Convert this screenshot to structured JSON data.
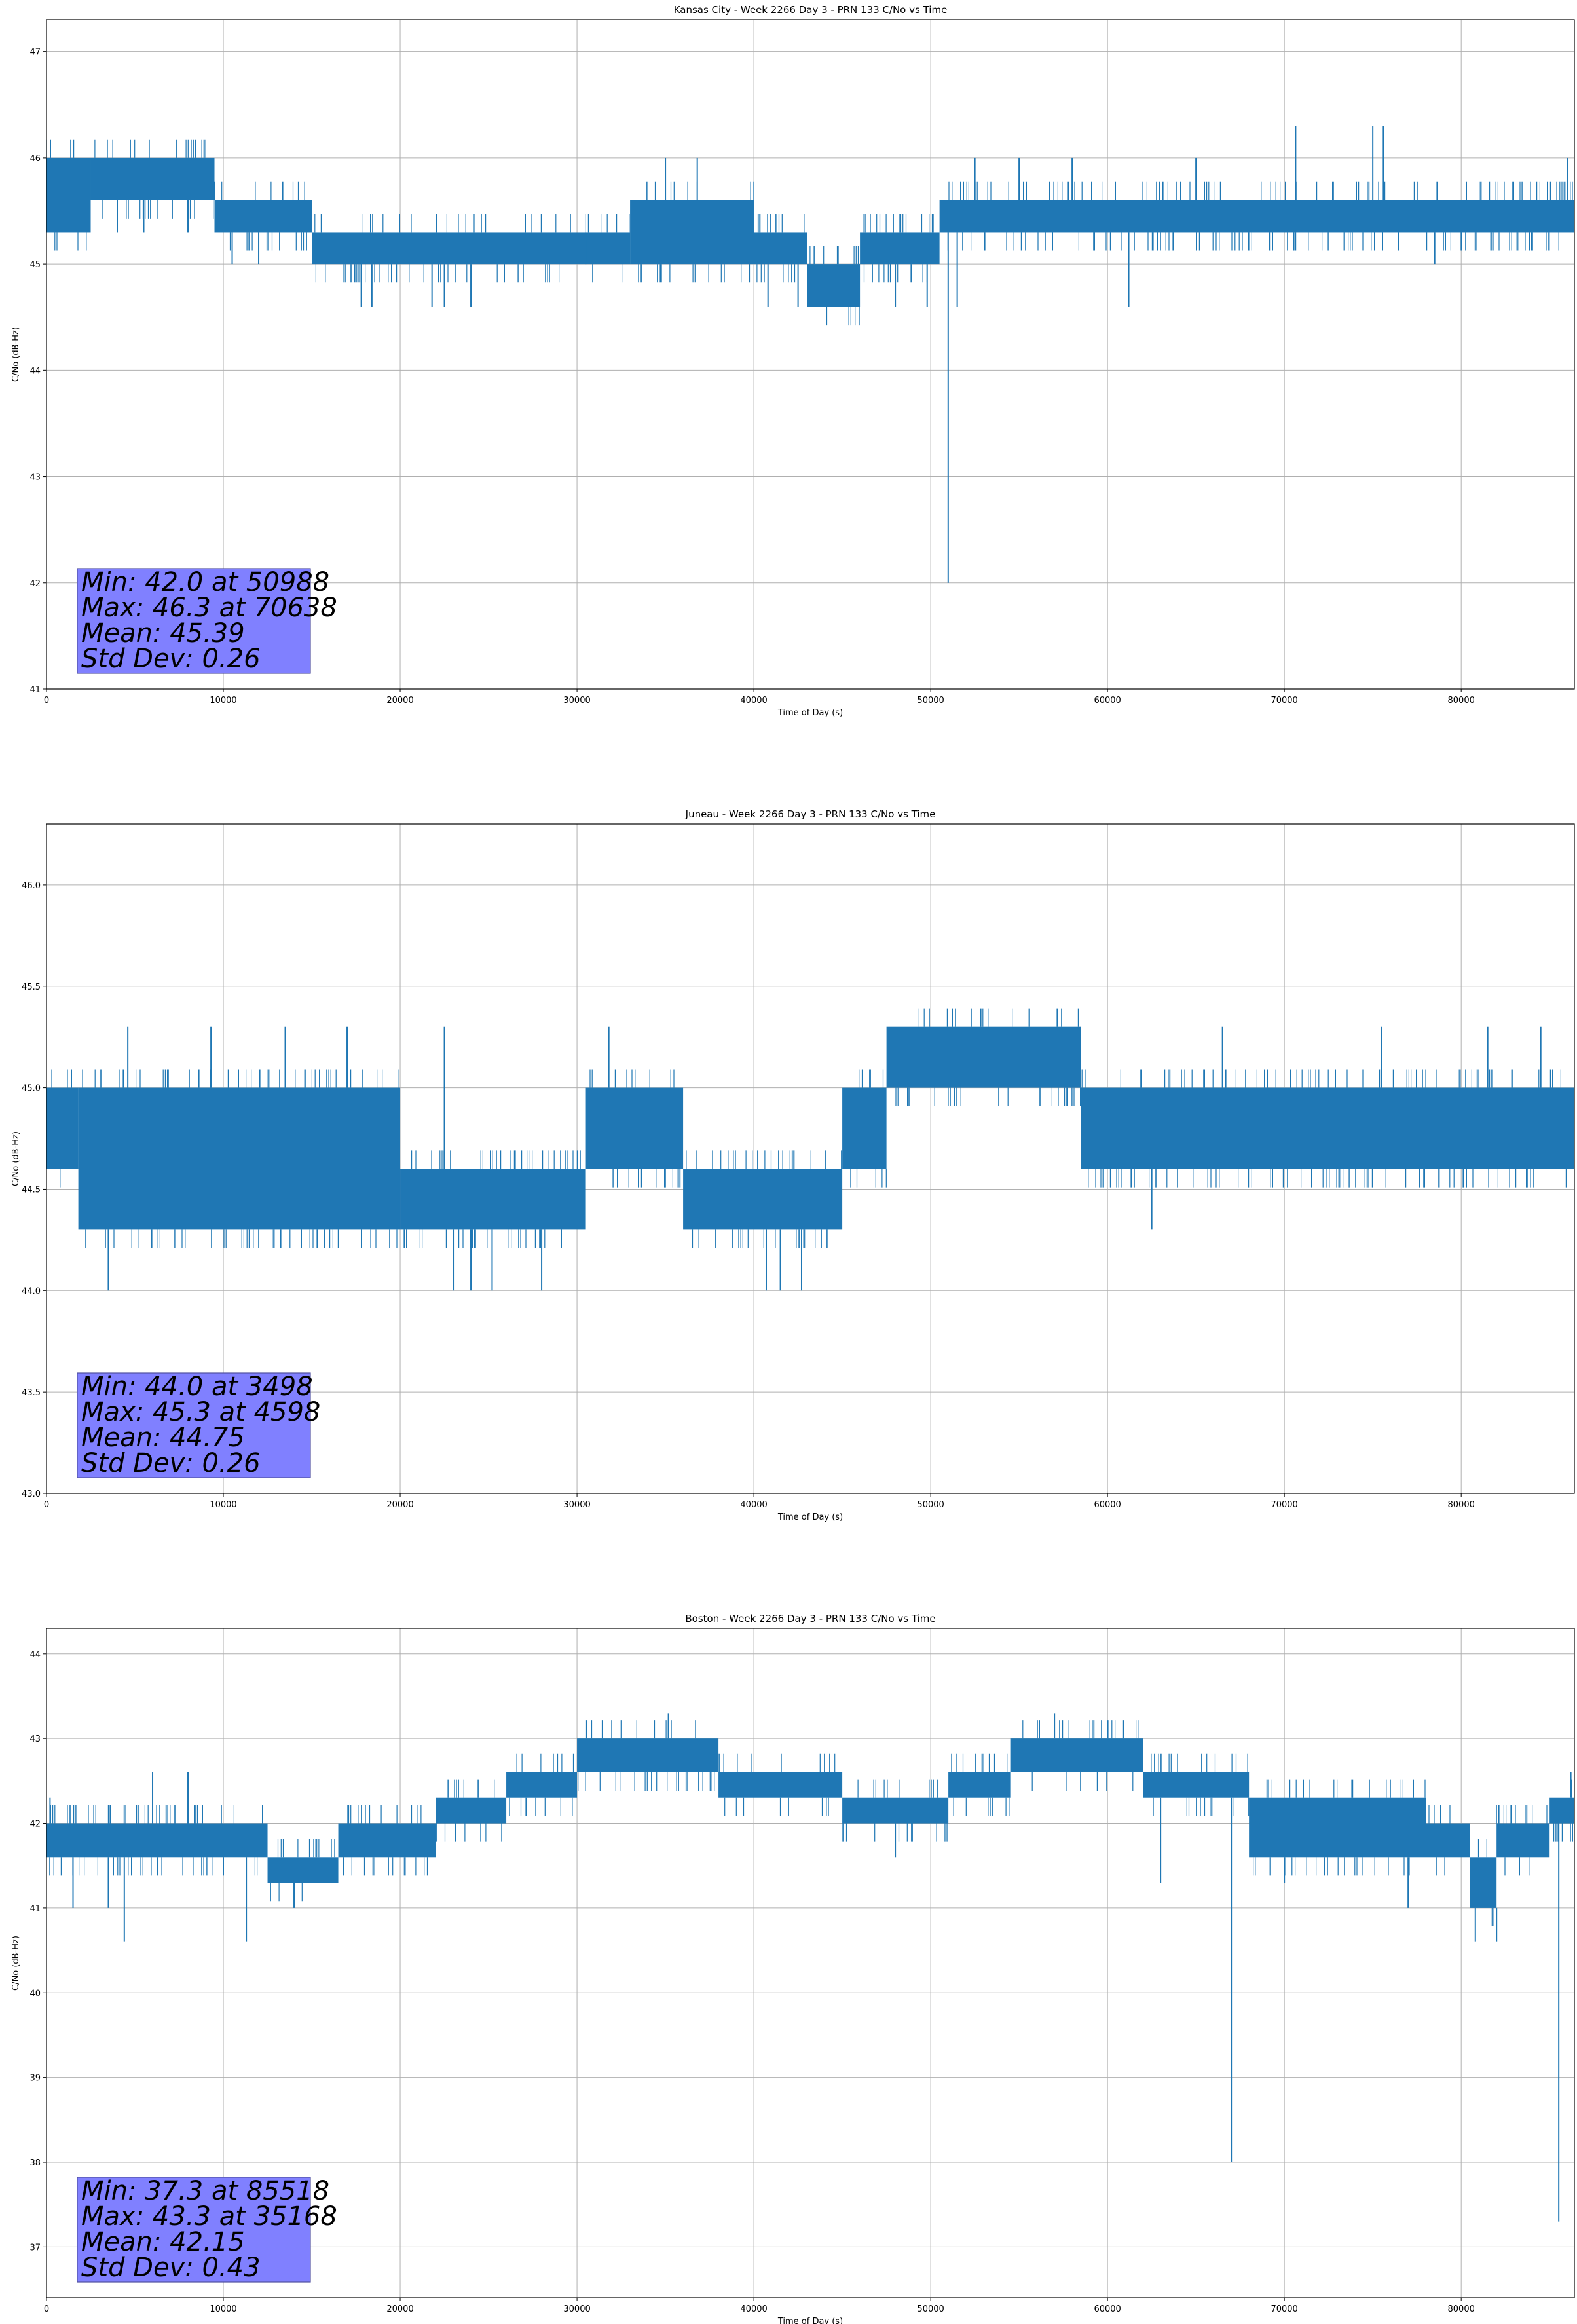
{
  "chart_data": [
    {
      "type": "line",
      "title": "Kansas City - Week 2266 Day 3 - PRN 133 C/No vs Time",
      "xlabel": "Time of Day (s)",
      "ylabel": "C/No (dB-Hz)",
      "xlim": [
        0,
        86400
      ],
      "ylim": [
        41,
        47.3
      ],
      "xticks": [
        0,
        10000,
        20000,
        30000,
        40000,
        50000,
        60000,
        70000,
        80000
      ],
      "yticks": [
        41,
        42,
        43,
        44,
        45,
        46,
        47
      ],
      "ytick_decimals": 0,
      "grid": true,
      "series_color": "#1f77b4",
      "bands": [
        {
          "x": [
            0,
            2500
          ],
          "lo": 45.3,
          "hi": 46.0
        },
        {
          "x": [
            2500,
            9500
          ],
          "lo": 45.6,
          "hi": 46.0
        },
        {
          "x": [
            9500,
            15000
          ],
          "lo": 45.3,
          "hi": 45.6
        },
        {
          "x": [
            15000,
            33000
          ],
          "lo": 45.0,
          "hi": 45.3
        },
        {
          "x": [
            33000,
            40000
          ],
          "lo": 45.0,
          "hi": 45.6
        },
        {
          "x": [
            40000,
            43000
          ],
          "lo": 45.0,
          "hi": 45.3
        },
        {
          "x": [
            43000,
            46000
          ],
          "lo": 44.6,
          "hi": 45.0
        },
        {
          "x": [
            46000,
            50500
          ],
          "lo": 45.0,
          "hi": 45.3
        },
        {
          "x": [
            50500,
            86400
          ],
          "lo": 45.3,
          "hi": 45.6
        }
      ],
      "spikes": [
        [
          4000,
          45.3
        ],
        [
          5500,
          45.3
        ],
        [
          8000,
          45.3
        ],
        [
          10500,
          45.0
        ],
        [
          12000,
          45.0
        ],
        [
          17800,
          44.6
        ],
        [
          18400,
          44.6
        ],
        [
          21800,
          44.6
        ],
        [
          22500,
          44.6
        ],
        [
          24000,
          44.6
        ],
        [
          30500,
          45.3
        ],
        [
          35000,
          46.0
        ],
        [
          36800,
          46.0
        ],
        [
          40800,
          44.6
        ],
        [
          42500,
          44.6
        ],
        [
          45200,
          44.6
        ],
        [
          48000,
          44.6
        ],
        [
          49800,
          44.6
        ],
        [
          50988,
          42.0
        ],
        [
          51500,
          44.6
        ],
        [
          52500,
          46.0
        ],
        [
          55000,
          46.0
        ],
        [
          58000,
          46.0
        ],
        [
          61200,
          44.6
        ],
        [
          65000,
          46.0
        ],
        [
          70638,
          46.3
        ],
        [
          75000,
          46.3
        ],
        [
          75600,
          46.3
        ],
        [
          78500,
          45.0
        ],
        [
          86000,
          46.0
        ]
      ],
      "stats": [
        "Min: 42.0 at 50988",
        "Max: 46.3 at 70638",
        "Mean: 45.39",
        "Std Dev: 0.26"
      ]
    },
    {
      "type": "line",
      "title": "Juneau - Week 2266 Day 3 - PRN 133 C/No vs Time",
      "xlabel": "Time of Day (s)",
      "ylabel": "C/No (dB-Hz)",
      "xlim": [
        0,
        86400
      ],
      "ylim": [
        43.0,
        46.3
      ],
      "xticks": [
        0,
        10000,
        20000,
        30000,
        40000,
        50000,
        60000,
        70000,
        80000
      ],
      "yticks": [
        43.0,
        43.5,
        44.0,
        44.5,
        45.0,
        45.5,
        46.0
      ],
      "ytick_decimals": 1,
      "grid": true,
      "series_color": "#1f77b4",
      "bands": [
        {
          "x": [
            0,
            1800
          ],
          "lo": 44.6,
          "hi": 45.0
        },
        {
          "x": [
            1800,
            20000
          ],
          "lo": 44.3,
          "hi": 45.0
        },
        {
          "x": [
            20000,
            30500
          ],
          "lo": 44.3,
          "hi": 44.6
        },
        {
          "x": [
            30500,
            36000
          ],
          "lo": 44.6,
          "hi": 45.0
        },
        {
          "x": [
            36000,
            45000
          ],
          "lo": 44.3,
          "hi": 44.6
        },
        {
          "x": [
            45000,
            47500
          ],
          "lo": 44.6,
          "hi": 45.0
        },
        {
          "x": [
            47500,
            58500
          ],
          "lo": 45.0,
          "hi": 45.3
        },
        {
          "x": [
            58500,
            86400
          ],
          "lo": 44.6,
          "hi": 45.0
        }
      ],
      "spikes": [
        [
          3498,
          44.0
        ],
        [
          4598,
          45.3
        ],
        [
          9300,
          45.3
        ],
        [
          13500,
          45.3
        ],
        [
          17000,
          45.3
        ],
        [
          22500,
          45.3
        ],
        [
          23000,
          44.0
        ],
        [
          24000,
          44.0
        ],
        [
          25200,
          44.0
        ],
        [
          28000,
          44.0
        ],
        [
          31800,
          45.3
        ],
        [
          40700,
          44.0
        ],
        [
          41500,
          44.0
        ],
        [
          42700,
          44.0
        ],
        [
          62500,
          44.3
        ],
        [
          66500,
          45.3
        ],
        [
          75500,
          45.3
        ],
        [
          81500,
          45.3
        ],
        [
          84500,
          45.3
        ]
      ],
      "stats": [
        "Min: 44.0 at 3498",
        "Max: 45.3 at 4598",
        "Mean: 44.75",
        "Std Dev: 0.26"
      ]
    },
    {
      "type": "line",
      "title": "Boston - Week 2266 Day 3 - PRN 133 C/No vs Time",
      "xlabel": "Time of Day (s)",
      "ylabel": "C/No (dB-Hz)",
      "xlim": [
        0,
        86400
      ],
      "ylim": [
        36.4,
        44.3
      ],
      "xticks": [
        0,
        10000,
        20000,
        30000,
        40000,
        50000,
        60000,
        70000,
        80000
      ],
      "yticks": [
        37,
        38,
        39,
        40,
        41,
        42,
        43,
        44
      ],
      "ytick_decimals": 0,
      "grid": true,
      "series_color": "#1f77b4",
      "bands": [
        {
          "x": [
            0,
            12500
          ],
          "lo": 41.6,
          "hi": 42.0
        },
        {
          "x": [
            12500,
            16500
          ],
          "lo": 41.3,
          "hi": 41.6
        },
        {
          "x": [
            16500,
            22000
          ],
          "lo": 41.6,
          "hi": 42.0
        },
        {
          "x": [
            22000,
            26000
          ],
          "lo": 42.0,
          "hi": 42.3
        },
        {
          "x": [
            26000,
            30000
          ],
          "lo": 42.3,
          "hi": 42.6
        },
        {
          "x": [
            30000,
            38000
          ],
          "lo": 42.6,
          "hi": 43.0
        },
        {
          "x": [
            38000,
            45000
          ],
          "lo": 42.3,
          "hi": 42.6
        },
        {
          "x": [
            45000,
            51000
          ],
          "lo": 42.0,
          "hi": 42.3
        },
        {
          "x": [
            51000,
            54500
          ],
          "lo": 42.3,
          "hi": 42.6
        },
        {
          "x": [
            54500,
            62000
          ],
          "lo": 42.6,
          "hi": 43.0
        },
        {
          "x": [
            62000,
            68000
          ],
          "lo": 42.3,
          "hi": 42.6
        },
        {
          "x": [
            68000,
            78000
          ],
          "lo": 41.6,
          "hi": 42.3
        },
        {
          "x": [
            78000,
            80500
          ],
          "lo": 41.6,
          "hi": 42.0
        },
        {
          "x": [
            80500,
            82000
          ],
          "lo": 41.0,
          "hi": 41.6
        },
        {
          "x": [
            82000,
            85000
          ],
          "lo": 41.6,
          "hi": 42.0
        },
        {
          "x": [
            85000,
            86400
          ],
          "lo": 42.0,
          "hi": 42.3
        }
      ],
      "spikes": [
        [
          200,
          42.3
        ],
        [
          1500,
          41.0
        ],
        [
          3500,
          41.0
        ],
        [
          4400,
          40.6
        ],
        [
          6000,
          42.6
        ],
        [
          8000,
          42.6
        ],
        [
          11300,
          40.6
        ],
        [
          14000,
          41.0
        ],
        [
          35168,
          43.3
        ],
        [
          57000,
          43.3
        ],
        [
          48000,
          41.6
        ],
        [
          63000,
          41.3
        ],
        [
          67000,
          38.0
        ],
        [
          70000,
          41.3
        ],
        [
          77000,
          41.0
        ],
        [
          80800,
          40.6
        ],
        [
          82000,
          40.6
        ],
        [
          85518,
          37.3
        ],
        [
          86200,
          42.6
        ]
      ],
      "stats": [
        "Min: 37.3 at 85518",
        "Max: 43.3 at 35168",
        "Mean: 42.15",
        "Std Dev: 0.43"
      ]
    }
  ]
}
